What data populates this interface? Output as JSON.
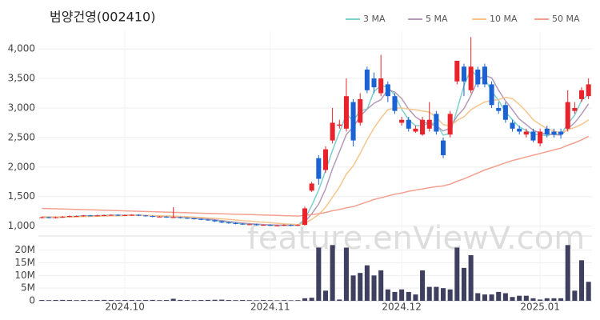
{
  "chart_data": {
    "type": "candlestick",
    "title": "범양건영(002410)",
    "watermark": "feature.enViewV.com",
    "up_color": "#e8232b",
    "down_color": "#1b62d4",
    "volume_color": "#3f3f5f",
    "grid": true,
    "legend": "top-right",
    "categories": [
      null,
      null,
      null,
      null,
      null,
      null,
      null,
      null,
      null,
      null,
      null,
      null,
      "2024.10",
      null,
      null,
      null,
      null,
      null,
      null,
      null,
      null,
      null,
      null,
      null,
      null,
      null,
      null,
      null,
      null,
      null,
      null,
      null,
      null,
      "2024.11",
      null,
      null,
      null,
      null,
      null,
      null,
      null,
      null,
      null,
      null,
      null,
      null,
      null,
      null,
      null,
      null,
      null,
      null,
      "2024.12",
      null,
      null,
      null,
      null,
      null,
      null,
      null,
      null,
      null,
      null,
      null,
      null,
      null,
      null,
      null,
      null,
      null,
      null,
      null,
      "2025.01",
      null,
      null,
      null,
      null,
      null,
      null,
      null
    ],
    "ylim": [
      900,
      4300
    ],
    "yticks": [
      {
        "value": 1000,
        "label": "1,000"
      },
      {
        "value": 1500,
        "label": "1,500"
      },
      {
        "value": 2000,
        "label": "2,000"
      },
      {
        "value": 2500,
        "label": "2,500"
      },
      {
        "value": 3000,
        "label": "3,000"
      },
      {
        "value": 3500,
        "label": "3,500"
      },
      {
        "value": 4000,
        "label": "4,000"
      }
    ],
    "y2lim": [
      0,
      24000000
    ],
    "y2ticks": [
      0,
      {
        "value": 5000000,
        "label": "5M"
      },
      {
        "value": 10000000,
        "label": "10M"
      },
      {
        "value": 15000000,
        "label": "15M"
      },
      {
        "value": 20000000,
        "label": "20M"
      }
    ],
    "candles": [
      [
        1140,
        1160,
        1130,
        1150
      ],
      [
        1150,
        1160,
        1130,
        1140
      ],
      [
        1140,
        1160,
        1130,
        1150
      ],
      [
        1150,
        1170,
        1140,
        1160
      ],
      [
        1160,
        1180,
        1150,
        1170
      ],
      [
        1170,
        1180,
        1160,
        1170
      ],
      [
        1170,
        1190,
        1160,
        1180
      ],
      [
        1180,
        1190,
        1165,
        1175
      ],
      [
        1175,
        1190,
        1165,
        1180
      ],
      [
        1180,
        1195,
        1170,
        1185
      ],
      [
        1185,
        1200,
        1175,
        1190
      ],
      [
        1190,
        1200,
        1170,
        1180
      ],
      [
        1180,
        1195,
        1170,
        1185
      ],
      [
        1185,
        1200,
        1175,
        1190
      ],
      [
        1190,
        1200,
        1170,
        1180
      ],
      [
        1180,
        1190,
        1160,
        1170
      ],
      [
        1170,
        1180,
        1150,
        1160
      ],
      [
        1160,
        1170,
        1150,
        1160
      ],
      [
        1160,
        1170,
        1140,
        1150
      ],
      [
        1150,
        1320,
        1140,
        1150
      ],
      [
        1150,
        1160,
        1130,
        1140
      ],
      [
        1140,
        1150,
        1120,
        1130
      ],
      [
        1130,
        1140,
        1110,
        1120
      ],
      [
        1120,
        1130,
        1100,
        1110
      ],
      [
        1110,
        1120,
        1090,
        1100
      ],
      [
        1100,
        1110,
        1070,
        1080
      ],
      [
        1080,
        1090,
        1050,
        1060
      ],
      [
        1060,
        1070,
        1040,
        1050
      ],
      [
        1050,
        1060,
        1030,
        1040
      ],
      [
        1040,
        1050,
        1020,
        1030
      ],
      [
        1030,
        1045,
        1020,
        1030
      ],
      [
        1030,
        1040,
        1010,
        1020
      ],
      [
        1020,
        1030,
        1010,
        1020
      ],
      [
        1020,
        1030,
        1000,
        1010
      ],
      [
        1010,
        1020,
        1000,
        1010
      ],
      [
        1010,
        1030,
        1000,
        1020
      ],
      [
        1020,
        1030,
        1000,
        1010
      ],
      [
        1010,
        1030,
        1000,
        1020
      ],
      [
        1020,
        1330,
        1010,
        1300
      ],
      [
        1600,
        1750,
        1580,
        1720
      ],
      [
        2150,
        2200,
        1700,
        1800
      ],
      [
        1950,
        2350,
        1900,
        2300
      ],
      [
        2450,
        3000,
        2400,
        2750
      ],
      [
        2700,
        2800,
        2650,
        2720
      ],
      [
        2650,
        3500,
        2600,
        3200
      ],
      [
        3100,
        3150,
        2350,
        2450
      ],
      [
        2750,
        3250,
        2700,
        3150
      ],
      [
        3650,
        3700,
        3250,
        3300
      ],
      [
        3500,
        3600,
        3250,
        3350
      ],
      [
        3250,
        3900,
        3200,
        3500
      ],
      [
        3400,
        3450,
        3100,
        3200
      ],
      [
        3200,
        3250,
        2900,
        2950
      ],
      [
        2750,
        2850,
        2700,
        2800
      ],
      [
        2800,
        2850,
        2600,
        2650
      ],
      [
        2600,
        2700,
        2580,
        2650
      ],
      [
        2550,
        2850,
        2530,
        2800
      ],
      [
        2650,
        3100,
        2600,
        2800
      ],
      [
        2900,
        2950,
        2550,
        2600
      ],
      [
        2450,
        2500,
        2150,
        2200
      ],
      [
        2550,
        2950,
        2500,
        2900
      ],
      [
        3450,
        3800,
        3400,
        3800
      ],
      [
        3700,
        3750,
        3200,
        3450
      ],
      [
        3300,
        4200,
        3250,
        3700
      ],
      [
        3650,
        3700,
        3350,
        3400
      ],
      [
        3700,
        3750,
        3350,
        3400
      ],
      [
        3400,
        3450,
        3000,
        3050
      ],
      [
        3000,
        3100,
        2900,
        2950
      ],
      [
        3050,
        3100,
        2750,
        2800
      ],
      [
        2750,
        2800,
        2600,
        2650
      ],
      [
        2650,
        2700,
        2550,
        2600
      ],
      [
        2550,
        2650,
        2500,
        2600
      ],
      [
        2600,
        2650,
        2420,
        2450
      ],
      [
        2400,
        2650,
        2350,
        2600
      ],
      [
        2650,
        2700,
        2500,
        2550
      ],
      [
        2600,
        2650,
        2500,
        2550
      ],
      [
        2600,
        2650,
        2480,
        2550
      ],
      [
        2650,
        3300,
        2600,
        3100
      ],
      [
        2950,
        3100,
        2900,
        3000
      ],
      [
        3150,
        3350,
        3100,
        3300
      ],
      [
        3200,
        3500,
        3150,
        3400
      ]
    ],
    "volumes": [
      300000,
      250000,
      300000,
      350000,
      300000,
      250000,
      300000,
      250000,
      300000,
      350000,
      300000,
      250000,
      300000,
      300000,
      250000,
      300000,
      350000,
      250000,
      300000,
      800000,
      350000,
      300000,
      250000,
      300000,
      350000,
      400000,
      450000,
      300000,
      250000,
      300000,
      250000,
      200000,
      300000,
      250000,
      200000,
      250000,
      200000,
      250000,
      1000000,
      1200000,
      21000000,
      4000000,
      22000000,
      500000,
      21000000,
      10000000,
      11000000,
      14000000,
      10000000,
      12000000,
      4500000,
      3500000,
      4500000,
      3500000,
      2500000,
      12000000,
      5500000,
      5500000,
      5000000,
      4500000,
      21000000,
      13000000,
      18000000,
      3000000,
      2500000,
      2500000,
      3500000,
      3000000,
      1500000,
      2000000,
      2000000,
      1000000,
      500000,
      1000000,
      1000000,
      1000000,
      22000000,
      4000000,
      16000000,
      7500000
    ],
    "series": [
      {
        "name": "3 MA",
        "color": "#7ecfcf",
        "values": [
          1150,
          1145,
          1147,
          1150,
          1160,
          1167,
          1173,
          1175,
          1178,
          1180,
          1185,
          1185,
          1185,
          1185,
          1185,
          1180,
          1170,
          1163,
          1157,
          1153,
          1147,
          1140,
          1130,
          1120,
          1110,
          1097,
          1080,
          1063,
          1050,
          1040,
          1033,
          1027,
          1023,
          1017,
          1013,
          1013,
          1013,
          1017,
          1120,
          1350,
          1610,
          1940,
          2280,
          2590,
          2890,
          2790,
          2950,
          2980,
          3280,
          3380,
          3350,
          3220,
          2980,
          2800,
          2700,
          2700,
          2750,
          2730,
          2540,
          2570,
          2970,
          3380,
          3650,
          3520,
          3500,
          3280,
          3130,
          2930,
          2800,
          2680,
          2620,
          2550,
          2550,
          2530,
          2570,
          2550,
          2730,
          2880,
          3130,
          3230
        ]
      },
      {
        "name": "5 MA",
        "color": "#b39ab8",
        "values": [
          1150,
          1147,
          1147,
          1150,
          1154,
          1158,
          1166,
          1171,
          1176,
          1178,
          1182,
          1182,
          1184,
          1186,
          1184,
          1181,
          1177,
          1170,
          1164,
          1158,
          1152,
          1146,
          1140,
          1130,
          1120,
          1108,
          1094,
          1078,
          1066,
          1052,
          1042,
          1034,
          1028,
          1022,
          1018,
          1016,
          1016,
          1016,
          1070,
          1210,
          1370,
          1630,
          1970,
          2260,
          2550,
          2680,
          2860,
          2980,
          3080,
          3140,
          3310,
          3270,
          3160,
          2980,
          2850,
          2770,
          2730,
          2700,
          2610,
          2660,
          2860,
          2990,
          3210,
          3470,
          3550,
          3510,
          3300,
          3120,
          2970,
          2810,
          2720,
          2620,
          2580,
          2560,
          2550,
          2540,
          2650,
          2750,
          2900,
          3070
        ]
      },
      {
        "name": "10 MA",
        "color": "#f4c58c",
        "values": [
          1160,
          1158,
          1156,
          1155,
          1156,
          1158,
          1160,
          1163,
          1166,
          1170,
          1172,
          1175,
          1178,
          1180,
          1181,
          1180,
          1178,
          1176,
          1172,
          1169,
          1164,
          1158,
          1152,
          1146,
          1139,
          1131,
          1123,
          1114,
          1104,
          1094,
          1084,
          1075,
          1066,
          1057,
          1048,
          1040,
          1033,
          1027,
          1045,
          1115,
          1195,
          1320,
          1490,
          1660,
          1880,
          2020,
          2230,
          2460,
          2660,
          2830,
          2970,
          3000,
          3000,
          2980,
          2970,
          2950,
          2930,
          2840,
          2720,
          2690,
          2790,
          2850,
          2970,
          3040,
          3100,
          3130,
          3140,
          3180,
          3160,
          3060,
          2940,
          2800,
          2720,
          2650,
          2610,
          2580,
          2630,
          2670,
          2720,
          2800
        ]
      },
      {
        "name": "50 MA",
        "color": "#f4a090",
        "values": [
          1300,
          1296,
          1293,
          1289,
          1286,
          1282,
          1279,
          1275,
          1272,
          1268,
          1265,
          1261,
          1258,
          1254,
          1251,
          1247,
          1244,
          1240,
          1237,
          1233,
          1230,
          1226,
          1223,
          1219,
          1216,
          1212,
          1209,
          1205,
          1202,
          1198,
          1195,
          1191,
          1188,
          1184,
          1181,
          1177,
          1174,
          1170,
          1180,
          1195,
          1210,
          1230,
          1260,
          1280,
          1310,
          1330,
          1370,
          1410,
          1450,
          1480,
          1510,
          1540,
          1560,
          1590,
          1610,
          1630,
          1650,
          1670,
          1680,
          1710,
          1760,
          1800,
          1850,
          1900,
          1950,
          1990,
          2030,
          2070,
          2110,
          2140,
          2170,
          2200,
          2230,
          2260,
          2290,
          2320,
          2370,
          2410,
          2460,
          2520
        ]
      }
    ]
  }
}
